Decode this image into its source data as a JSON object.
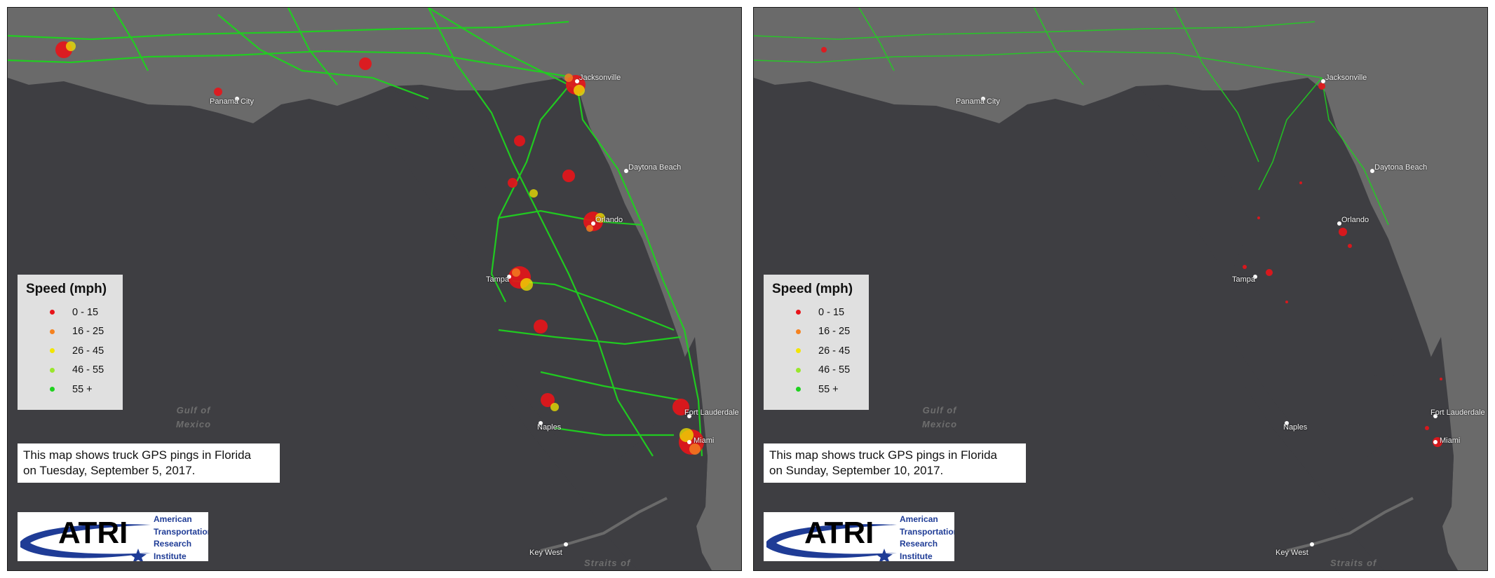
{
  "legend": {
    "title": "Speed (mph)",
    "items": [
      {
        "label": "0 - 15",
        "color": "#e8141a"
      },
      {
        "label": "16 - 25",
        "color": "#f58220"
      },
      {
        "label": "26 - 45",
        "color": "#f2e600"
      },
      {
        "label": "46 - 55",
        "color": "#9ae62c"
      },
      {
        "label": "55 +",
        "color": "#1fd21f"
      }
    ]
  },
  "left": {
    "caption_line1": "This map shows truck GPS pings in Florida",
    "caption_line2": "on Tuesday, September 5, 2017."
  },
  "right": {
    "caption_line1": "This map shows truck GPS pings in Florida",
    "caption_line2": "on Sunday, September 10, 2017."
  },
  "cities": {
    "panama_city": "Panama City",
    "jacksonville": "Jacksonville",
    "daytona": "Daytona Beach",
    "orlando": "Orlando",
    "tampa": "Tampa",
    "naples": "Naples",
    "fort_lauderdale": "Fort Lauderdale",
    "miami": "Miami",
    "key_west": "Key West"
  },
  "water": {
    "gulf_line1": "Gulf of",
    "gulf_line2": "Mexico",
    "straits": "Straits of"
  },
  "logo": {
    "acronym": "ATRI",
    "line1": "American",
    "line2": "Transportation",
    "line3": "Research",
    "line4": "Institute"
  },
  "colors": {
    "water": "#3e3e42",
    "land": "#6b6b6b",
    "logo_blue": "#1f3c96"
  }
}
